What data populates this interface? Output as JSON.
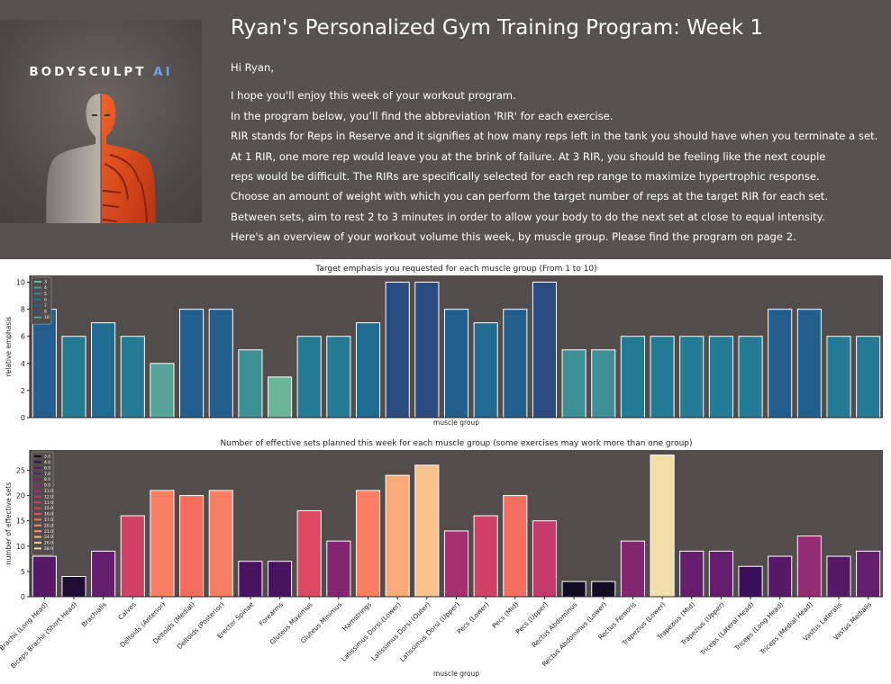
{
  "header": {
    "brand_main": "BODYSCULPT",
    "brand_accent": "AI",
    "title": "Ryan's Personalized Gym Training Program: Week 1",
    "greeting": "Hi Ryan,",
    "paragraphs": [
      "I hope you'll enjoy this week of your workout program.",
      "In the program below, you’ll find the abbreviation 'RIR' for each exercise.",
      "RIR stands for Reps in Reserve and it signifies at how many reps left in the tank you should have when you terminate a set.",
      "At 1 RIR, one more rep would leave you at the brink of failure. At 3 RIR, you should be feeling like the next couple",
      "reps would be difficult. The RIRs are specifically selected for each rep range to maximize hypertrophic response.",
      "Choose an amount of weight with which you can perform the target number of reps at the target RIR for each set.",
      "Between sets, aim to rest 2 to 3 minutes in order to allow your body to do the next set at close to equal intensity.",
      "Here's an overview of your workout volume this week, by muscle group. Please find the program on page 2."
    ]
  },
  "colors": {
    "header_bg": "#575150",
    "brand_accent": "#6f9fe8",
    "plot_bg": "#524c4b"
  },
  "chart_data": [
    {
      "type": "bar",
      "title": "Target emphasis you requested for each muscle group (From 1 to 10)",
      "xlabel": "muscle group",
      "ylabel": "relative emphasis",
      "ylim": [
        0,
        10.5
      ],
      "yticks": [
        0,
        2,
        4,
        6,
        8,
        10
      ],
      "legend_position": "top-left",
      "legend": [
        "3",
        "4",
        "5",
        "6",
        "7",
        "8",
        "10"
      ],
      "legend_colors": [
        "#6cb69a",
        "#4a9b98",
        "#3a8a98",
        "#237a94",
        "#1e6491",
        "#2a5388",
        "#56a796"
      ],
      "categories": [
        "Biceps Brachii (Long Head)",
        "Biceps Brachii (Short Head)",
        "Brachialis",
        "Calves",
        "Deltoids (Anterior)",
        "Deltoids (Medial)",
        "Deltoids (Posterior)",
        "Erector Spinae",
        "Forearms",
        "Gluteus Maximus",
        "Gluteus Minimus",
        "Hamstrings",
        "Latissimus Dorsi (Lower)",
        "Latissimus Dorsi (Outer)",
        "Latissimus Dorsi (Upper)",
        "Pecs (Lower)",
        "Pecs (Mid)",
        "Pecs (Upper)",
        "Rectus Abdominus",
        "Rectus Abdominus (Lower)",
        "Rectus Femoris",
        "Trapezius (Lower)",
        "Trapezius (Mid)",
        "Trapezius (Upper)",
        "Triceps (Lateral Head)",
        "Triceps (Long Head)",
        "Triceps (Medial Head)",
        "Vastus Lateralis",
        "Vastus Medialis"
      ],
      "values": [
        8,
        6,
        7,
        6,
        4,
        8,
        8,
        5,
        3,
        6,
        6,
        7,
        10,
        10,
        8,
        7,
        8,
        10,
        5,
        5,
        6,
        6,
        6,
        6,
        6,
        8,
        8,
        6,
        6
      ]
    },
    {
      "type": "bar",
      "title": "Number of effective sets planned this week for each muscle group (some exercises may work more than one group)",
      "xlabel": "muscle group",
      "ylabel": "number of effective sets",
      "ylim": [
        0,
        29
      ],
      "yticks": [
        0,
        5,
        10,
        15,
        20,
        25
      ],
      "legend_position": "top-left",
      "legend": [
        "3.0",
        "4.0",
        "6.0",
        "7.0",
        "8.0",
        "9.0",
        "11.0",
        "12.0",
        "13.0",
        "15.0",
        "16.0",
        "17.0",
        "20.0",
        "21.0",
        "24.0",
        "26.0",
        "28.0"
      ],
      "legend_colors": [
        "#120c22",
        "#251344",
        "#451c5e",
        "#5d1f6d",
        "#732271",
        "#852774",
        "#a12f74",
        "#b53471",
        "#c83c6b",
        "#d54260",
        "#f0525c",
        "#f66f5c",
        "#fb8c63",
        "#fd9a6a",
        "#fdb57f",
        "#f8c991",
        "#f1dea8"
      ],
      "categories": [
        "Biceps Brachii (Long Head)",
        "Biceps Brachii (Short Head)",
        "Brachialis",
        "Calves",
        "Deltoids (Anterior)",
        "Deltoids (Medial)",
        "Deltoids (Posterior)",
        "Erector Spinae",
        "Forearms",
        "Gluteus Maximus",
        "Gluteus Minimus",
        "Hamstrings",
        "Latissimus Dorsi (Lower)",
        "Latissimus Dorsi (Outer)",
        "Latissimus Dorsi (Upper)",
        "Pecs (Lower)",
        "Pecs (Mid)",
        "Pecs (Upper)",
        "Rectus Abdominus",
        "Rectus Abdominus (Lower)",
        "Rectus Femoris",
        "Trapezius (Lower)",
        "Trapezius (Mid)",
        "Trapezius (Upper)",
        "Triceps (Lateral Head)",
        "Triceps (Long Head)",
        "Triceps (Medial Head)",
        "Vastus Lateralis",
        "Vastus Medialis"
      ],
      "values": [
        8,
        4,
        9,
        16,
        21,
        20,
        21,
        7,
        7,
        17,
        11,
        21,
        24,
        26,
        13,
        16,
        20,
        15,
        3,
        3,
        11,
        28,
        9,
        9,
        6,
        8,
        12,
        8,
        9
      ]
    }
  ]
}
